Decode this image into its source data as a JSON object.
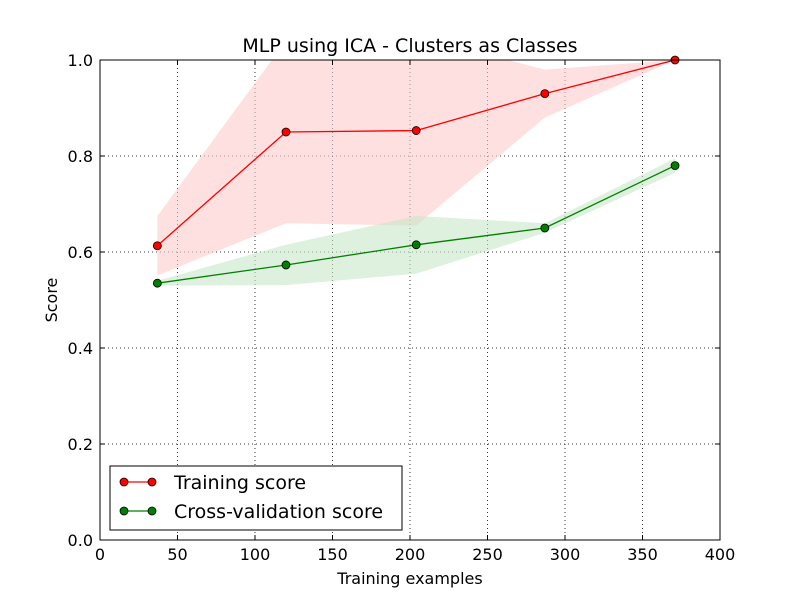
{
  "chart_data": {
    "type": "line",
    "title": "MLP using ICA - Clusters as Classes",
    "xlabel": "Training examples",
    "ylabel": "Score",
    "xlim": [
      0,
      400
    ],
    "ylim": [
      0.0,
      1.0
    ],
    "xticks": [
      0,
      50,
      100,
      150,
      200,
      250,
      300,
      350,
      400
    ],
    "yticks": [
      0.0,
      0.2,
      0.4,
      0.6,
      0.8,
      1.0
    ],
    "xtick_labels": [
      "0",
      "50",
      "100",
      "150",
      "200",
      "250",
      "300",
      "350",
      "400"
    ],
    "ytick_labels": [
      "0.0",
      "0.2",
      "0.4",
      "0.6",
      "0.8",
      "1.0"
    ],
    "grid": true,
    "legend_position": "lower-left",
    "x": [
      37,
      120,
      204,
      287,
      371
    ],
    "series": [
      {
        "name": "Training score",
        "color": "#ff0000",
        "band_color": "#ffcccc",
        "values": [
          0.613,
          0.85,
          0.853,
          0.93,
          1.0
        ],
        "upper": [
          0.675,
          1.04,
          1.05,
          0.98,
          1.0
        ],
        "lower": [
          0.551,
          0.66,
          0.655,
          0.88,
          1.0
        ]
      },
      {
        "name": "Cross-validation score",
        "color": "#008000",
        "band_color": "#c8e6c8",
        "values": [
          0.535,
          0.573,
          0.615,
          0.65,
          0.78
        ],
        "upper": [
          0.54,
          0.615,
          0.675,
          0.66,
          0.795
        ],
        "lower": [
          0.53,
          0.531,
          0.555,
          0.64,
          0.765
        ]
      }
    ]
  }
}
